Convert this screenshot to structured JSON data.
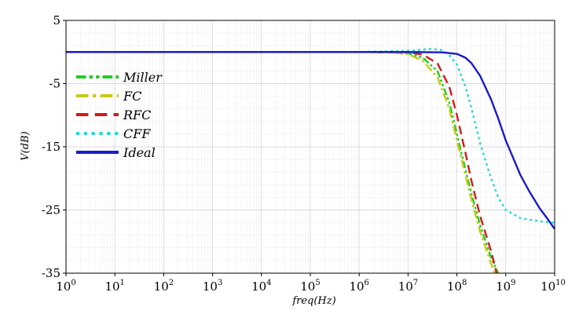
{
  "chart_data": {
    "type": "line",
    "title": "",
    "xlabel": "freq(Hz)",
    "ylabel": "V(dB)",
    "xscale": "log",
    "xlim": [
      1,
      10000000000
    ],
    "ylim": [
      -35,
      5
    ],
    "x_ticks": [
      {
        "base": "10",
        "exp": "0"
      },
      {
        "base": "10",
        "exp": "1"
      },
      {
        "base": "10",
        "exp": "2"
      },
      {
        "base": "10",
        "exp": "3"
      },
      {
        "base": "10",
        "exp": "4"
      },
      {
        "base": "10",
        "exp": "5"
      },
      {
        "base": "10",
        "exp": "6"
      },
      {
        "base": "10",
        "exp": "7"
      },
      {
        "base": "10",
        "exp": "8"
      },
      {
        "base": "10",
        "exp": "9"
      },
      {
        "base": "10",
        "exp": "10"
      }
    ],
    "y_ticks": [
      "5",
      "-5",
      "-15",
      "-25",
      "-35"
    ],
    "y_tick_values": [
      5,
      -5,
      -15,
      -25,
      -35
    ],
    "grid": true,
    "legend_position": "left",
    "series": [
      {
        "name": "Miller",
        "color": "#22cc22",
        "dash": "dash-dot-dot",
        "points": [
          [
            1,
            0
          ],
          [
            1000000,
            0
          ],
          [
            5000000,
            -0.05
          ],
          [
            10000000,
            -0.2
          ],
          [
            20000000,
            -0.9
          ],
          [
            40000000,
            -3.0
          ],
          [
            70000000,
            -8.0
          ],
          [
            100000000,
            -13.0
          ],
          [
            150000000,
            -18.6
          ],
          [
            200000000,
            -22.5
          ],
          [
            300000000,
            -27.5
          ],
          [
            500000000,
            -32.5
          ],
          [
            700000000,
            -35
          ]
        ]
      },
      {
        "name": "FC",
        "color": "#c8c818",
        "dash": "dash-dot",
        "points": [
          [
            1,
            0
          ],
          [
            1000000,
            0
          ],
          [
            5000000,
            -0.1
          ],
          [
            10000000,
            -0.35
          ],
          [
            20000000,
            -1.4
          ],
          [
            40000000,
            -4.0
          ],
          [
            70000000,
            -9.0
          ],
          [
            100000000,
            -14.0
          ],
          [
            150000000,
            -19.5
          ],
          [
            200000000,
            -23.5
          ],
          [
            300000000,
            -28.5
          ],
          [
            500000000,
            -33.5
          ],
          [
            600000000,
            -35
          ]
        ]
      },
      {
        "name": "RFC",
        "color": "#d41a1a",
        "dash": "dash",
        "points": [
          [
            1,
            0
          ],
          [
            1000000,
            0
          ],
          [
            10000000,
            -0.05
          ],
          [
            20000000,
            -0.4
          ],
          [
            40000000,
            -1.8
          ],
          [
            70000000,
            -5.5
          ],
          [
            100000000,
            -10.0
          ],
          [
            150000000,
            -16.0
          ],
          [
            200000000,
            -20.5
          ],
          [
            300000000,
            -26.0
          ],
          [
            500000000,
            -31.5
          ],
          [
            650000000,
            -35
          ]
        ]
      },
      {
        "name": "CFF",
        "color": "#22d8d8",
        "dash": "dot",
        "points": [
          [
            1,
            0
          ],
          [
            1000000,
            0
          ],
          [
            10000000,
            0.2
          ],
          [
            30000000,
            0.5
          ],
          [
            50000000,
            0.3
          ],
          [
            70000000,
            -0.5
          ],
          [
            100000000,
            -2.0
          ],
          [
            150000000,
            -5.5
          ],
          [
            200000000,
            -9.0
          ],
          [
            300000000,
            -14.5
          ],
          [
            500000000,
            -20.0
          ],
          [
            700000000,
            -23.0
          ],
          [
            1000000000,
            -25.0
          ],
          [
            2000000000,
            -26.3
          ],
          [
            5000000000,
            -26.8
          ],
          [
            10000000000,
            -27.0
          ]
        ]
      },
      {
        "name": "Ideal",
        "color": "#1a1acc",
        "dash": "solid",
        "points": [
          [
            1,
            0
          ],
          [
            10000000,
            0
          ],
          [
            50000000,
            -0.05
          ],
          [
            100000000,
            -0.3
          ],
          [
            150000000,
            -0.9
          ],
          [
            200000000,
            -1.8
          ],
          [
            300000000,
            -3.8
          ],
          [
            500000000,
            -7.5
          ],
          [
            700000000,
            -10.5
          ],
          [
            1000000000,
            -14.0
          ],
          [
            2000000000,
            -19.5
          ],
          [
            3000000000,
            -22.0
          ],
          [
            5000000000,
            -24.8
          ],
          [
            7000000000,
            -26.3
          ],
          [
            10000000000,
            -28.0
          ]
        ]
      }
    ]
  }
}
